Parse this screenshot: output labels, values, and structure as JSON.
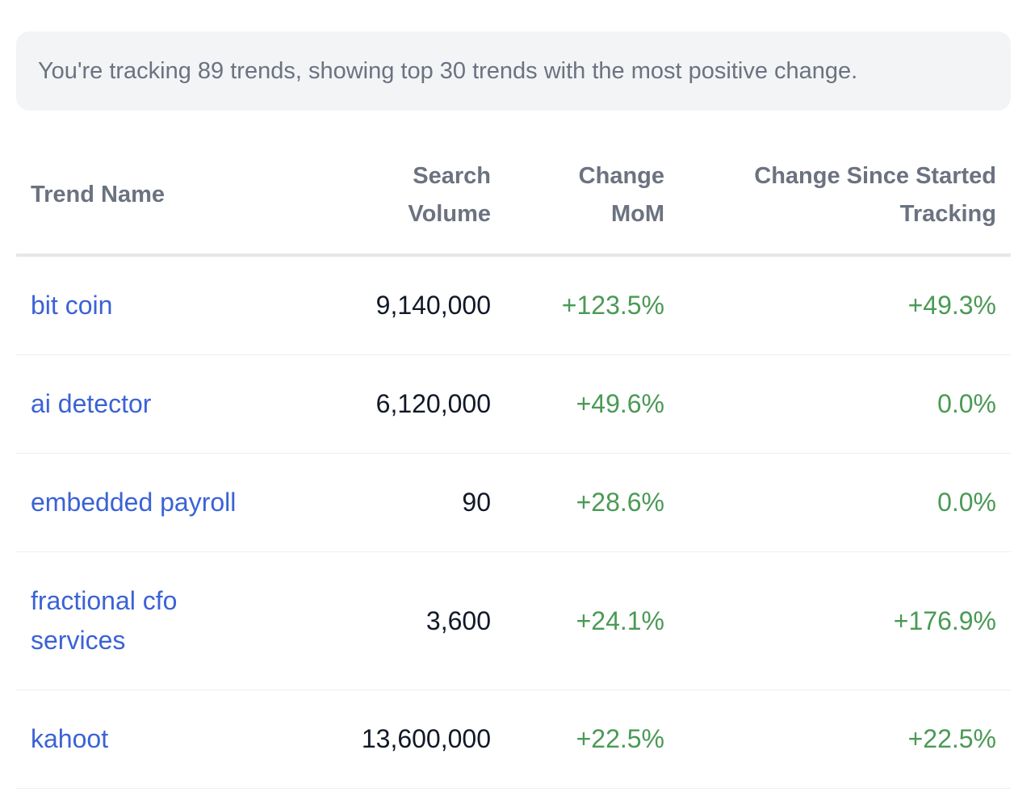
{
  "info": {
    "text": "You're tracking 89 trends, showing top 30 trends with the most positive change."
  },
  "table": {
    "headers": {
      "name": "Trend Name",
      "volume_line1": "Search",
      "volume_line2": "Volume",
      "mom_line1": "Change",
      "mom_line2": "MoM",
      "since_line1": "Change Since Started",
      "since_line2": "Tracking"
    },
    "rows": [
      {
        "name": "bit coin",
        "volume": "9,140,000",
        "mom": "+123.5%",
        "since": "+49.3%"
      },
      {
        "name": "ai detector",
        "volume": "6,120,000",
        "mom": "+49.6%",
        "since": "0.0%"
      },
      {
        "name": "embedded payroll",
        "volume": "90",
        "mom": "+28.6%",
        "since": "0.0%"
      },
      {
        "name_line1": "fractional cfo",
        "name_line2": "services",
        "volume": "3,600",
        "mom": "+24.1%",
        "since": "+176.9%"
      },
      {
        "name": "kahoot",
        "volume": "13,600,000",
        "mom": "+22.5%",
        "since": "+22.5%"
      }
    ]
  },
  "colors": {
    "link": "#3b62d6",
    "positive": "#4a9a55",
    "header_text": "#6b7280",
    "info_bg": "#f3f4f6"
  }
}
